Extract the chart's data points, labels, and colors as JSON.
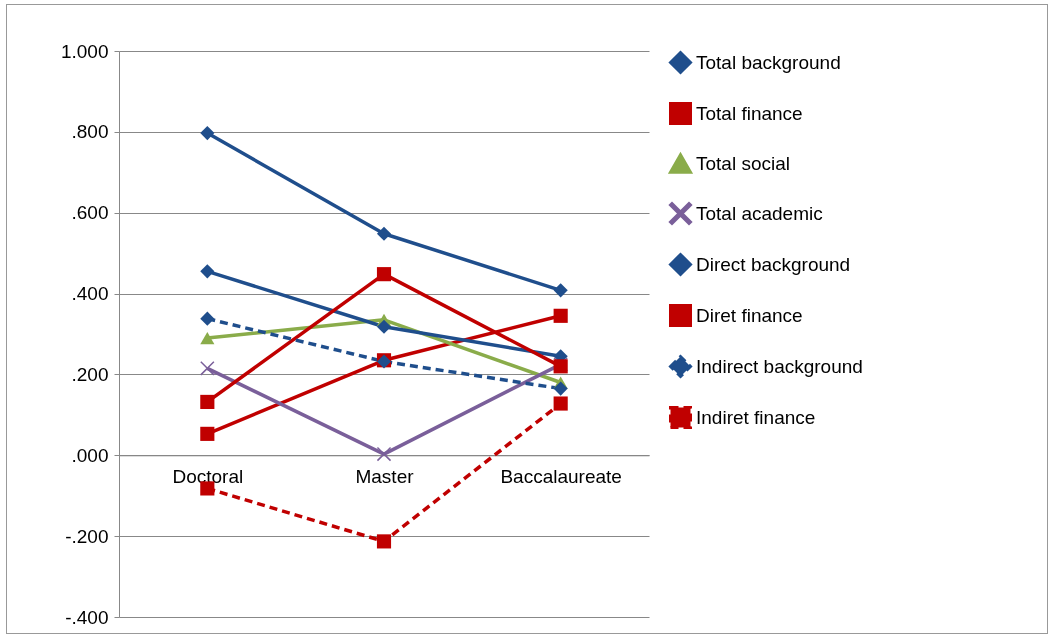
{
  "chart_data": {
    "type": "line",
    "categories": [
      "Doctoral",
      "Master",
      "Baccalaureate"
    ],
    "series": [
      {
        "name": "Total background",
        "color": "#1f4e8c",
        "marker": "diamond",
        "line_style": "solid",
        "values": [
          0.797,
          0.548,
          0.408
        ]
      },
      {
        "name": "Total finance",
        "color": "#c00000",
        "marker": "square",
        "line_style": "solid",
        "values": [
          0.053,
          0.235,
          0.345
        ]
      },
      {
        "name": "Total social",
        "color": "#8aac4a",
        "marker": "triangle",
        "line_style": "solid",
        "values": [
          0.29,
          0.335,
          0.18
        ]
      },
      {
        "name": "Total academic",
        "color": "#7a5f9a",
        "marker": "cross",
        "line_style": "solid",
        "values": [
          0.215,
          0.003,
          0.225
        ]
      },
      {
        "name": "Direct background",
        "color": "#1f4e8c",
        "marker": "diamond",
        "line_style": "solid",
        "values": [
          0.455,
          0.318,
          0.245
        ]
      },
      {
        "name": "Diret finance",
        "color": "#c00000",
        "marker": "square",
        "line_style": "solid",
        "values": [
          0.132,
          0.448,
          0.22
        ]
      },
      {
        "name": "Indirect background",
        "color": "#1f4e8c",
        "marker": "diamond",
        "line_style": "dashed",
        "values": [
          0.338,
          0.232,
          0.165
        ]
      },
      {
        "name": "Indiret finance",
        "color": "#c00000",
        "marker": "square",
        "line_style": "dashed",
        "values": [
          -0.082,
          -0.213,
          0.128
        ]
      }
    ],
    "ylim": [
      -0.4,
      1.0
    ],
    "yticks": [
      {
        "value": -0.4,
        "label": "-.400"
      },
      {
        "value": -0.2,
        "label": "-.200"
      },
      {
        "value": 0,
        "label": ".000"
      },
      {
        "value": 0.2,
        "label": ".200"
      },
      {
        "value": 0.4,
        "label": ".400"
      },
      {
        "value": 0.6,
        "label": ".600"
      },
      {
        "value": 0.8,
        "label": ".800"
      },
      {
        "value": 1.0,
        "label": "1.000"
      }
    ],
    "grid": "y",
    "legend": "right"
  }
}
